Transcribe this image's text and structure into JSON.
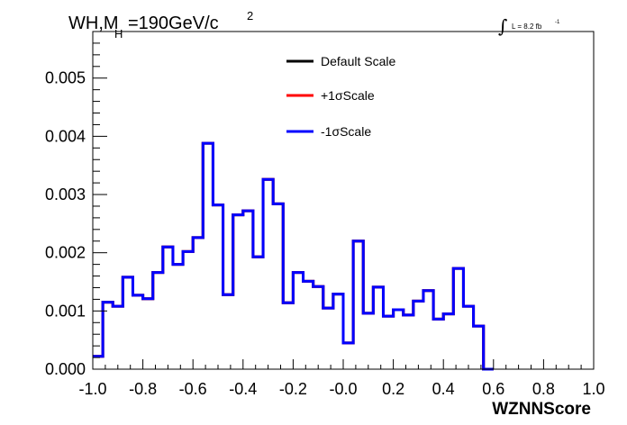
{
  "chart_data": {
    "type": "histogram",
    "title": {
      "prefix": "WH,M",
      "subscript": "H",
      "middle": "=190GeV/c",
      "superscript": "2"
    },
    "luminosity": {
      "integral": "∫",
      "text": "L = 8.2 fb",
      "superscript": "-1"
    },
    "xlabel": "WZNNScore",
    "ylabel": "",
    "xlim": [
      -1.0,
      1.0
    ],
    "ylim": [
      0.0,
      0.0058
    ],
    "x_ticks": [
      {
        "value": -1.0,
        "label": "-1.0"
      },
      {
        "value": -0.8,
        "label": "-0.8"
      },
      {
        "value": -0.6,
        "label": "-0.6"
      },
      {
        "value": -0.4,
        "label": "-0.4"
      },
      {
        "value": -0.2,
        "label": "-0.2"
      },
      {
        "value": 0.0,
        "label": "-0.0"
      },
      {
        "value": 0.2,
        "label": "0.2"
      },
      {
        "value": 0.4,
        "label": "0.4"
      },
      {
        "value": 0.6,
        "label": "0.6"
      },
      {
        "value": 0.8,
        "label": "0.8"
      },
      {
        "value": 1.0,
        "label": "1.0"
      }
    ],
    "y_ticks": [
      {
        "value": 0.0,
        "label": "0.000"
      },
      {
        "value": 0.001,
        "label": "0.001"
      },
      {
        "value": 0.002,
        "label": "0.002"
      },
      {
        "value": 0.003,
        "label": "0.003"
      },
      {
        "value": 0.004,
        "label": "0.004"
      },
      {
        "value": 0.005,
        "label": "0.005"
      }
    ],
    "bin_edges_start": -1.0,
    "bin_width": 0.04,
    "legend_position": "top-center",
    "series": [
      {
        "name": "Default Scale",
        "color": "#000000",
        "values": [
          0.00022,
          0.00115,
          0.00108,
          0.00158,
          0.00127,
          0.00121,
          0.00166,
          0.0021,
          0.0018,
          0.00202,
          0.00226,
          0.00388,
          0.00282,
          0.00128,
          0.00265,
          0.00272,
          0.00193,
          0.00326,
          0.00284,
          0.00114,
          0.00166,
          0.00151,
          0.00142,
          0.00105,
          0.00129,
          0.00045,
          0.0022,
          0.00096,
          0.00141,
          0.00091,
          0.00102,
          0.00093,
          0.00117,
          0.00135,
          0.00086,
          0.00095,
          0.00173,
          0.00108,
          0.00074,
          0.0
        ]
      },
      {
        "name": "+1σScale",
        "color": "#ff0000",
        "values": [
          0.00022,
          0.00115,
          0.00108,
          0.00158,
          0.00127,
          0.00121,
          0.00166,
          0.0021,
          0.0018,
          0.00202,
          0.00226,
          0.00388,
          0.00282,
          0.00128,
          0.00265,
          0.00272,
          0.00193,
          0.00326,
          0.00284,
          0.00114,
          0.00166,
          0.00151,
          0.00142,
          0.00105,
          0.00129,
          0.00045,
          0.0022,
          0.00096,
          0.00141,
          0.00091,
          0.00102,
          0.00093,
          0.00117,
          0.00135,
          0.00086,
          0.00095,
          0.00173,
          0.00108,
          0.00074,
          0.0
        ]
      },
      {
        "name": "-1σScale",
        "color": "#0000ff",
        "values": [
          0.00022,
          0.00115,
          0.00108,
          0.00158,
          0.00127,
          0.00121,
          0.00166,
          0.0021,
          0.0018,
          0.00202,
          0.00226,
          0.00388,
          0.00282,
          0.00128,
          0.00265,
          0.00272,
          0.00193,
          0.00326,
          0.00284,
          0.00114,
          0.00166,
          0.00151,
          0.00142,
          0.00105,
          0.00129,
          0.00045,
          0.0022,
          0.00096,
          0.00141,
          0.00091,
          0.00102,
          0.00093,
          0.00117,
          0.00135,
          0.00086,
          0.00095,
          0.00173,
          0.00108,
          0.00074,
          0.0
        ]
      }
    ]
  }
}
